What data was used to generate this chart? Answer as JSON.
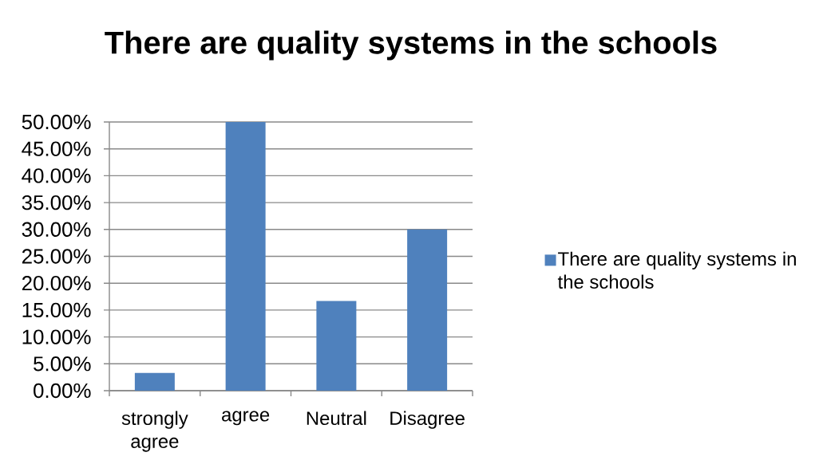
{
  "chart_data": {
    "type": "bar",
    "title": "There are quality systems in the schools",
    "categories": [
      "strongly agree",
      "agree",
      "Neutral",
      "Disagree"
    ],
    "series": [
      {
        "name": "There are quality systems in the schools",
        "color": "#4f81bd",
        "values": [
          3.3,
          50,
          16.7,
          30
        ]
      }
    ],
    "ylim": [
      0,
      50
    ],
    "yticks": [
      {
        "value": 0,
        "label": "0.00%"
      },
      {
        "value": 5,
        "label": "5.00%"
      },
      {
        "value": 10,
        "label": "10.00%"
      },
      {
        "value": 15,
        "label": "15.00%"
      },
      {
        "value": 20,
        "label": "20.00%"
      },
      {
        "value": 25,
        "label": "25.00%"
      },
      {
        "value": 30,
        "label": "30.00%"
      },
      {
        "value": 35,
        "label": "35.00%"
      },
      {
        "value": 40,
        "label": "40.00%"
      },
      {
        "value": 45,
        "label": "45.00%"
      },
      {
        "value": 50,
        "label": "50.00%"
      }
    ],
    "grid": "y",
    "legend": "right"
  }
}
